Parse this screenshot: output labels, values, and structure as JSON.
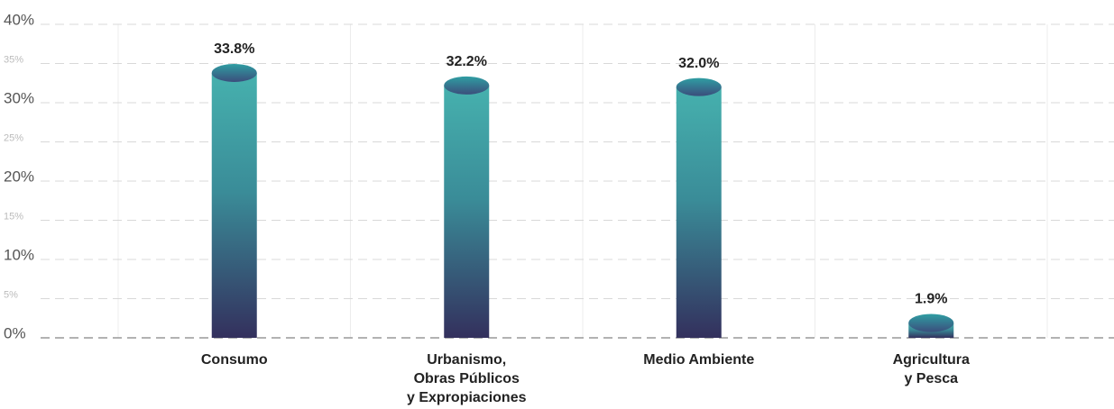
{
  "chart_data": {
    "type": "bar",
    "categories": [
      "Consumo",
      "Urbanismo,\nObras Públicos\ny Expropiaciones",
      "Medio Ambiente",
      "Agricultura\ny Pesca"
    ],
    "values": [
      33.8,
      32.2,
      32.0,
      1.9
    ],
    "value_labels": [
      "33.8%",
      "32.2%",
      "32.0%",
      "1.9%"
    ],
    "color": [
      "#46b1ae",
      "#33305d"
    ],
    "ylim": [
      0,
      40
    ],
    "yticks": [
      {
        "value": 0,
        "label": "0%"
      },
      {
        "value": 5,
        "label": "5%"
      },
      {
        "value": 10,
        "label": "10%"
      },
      {
        "value": 15,
        "label": "15%"
      },
      {
        "value": 20,
        "label": "20%"
      },
      {
        "value": 25,
        "label": "25%"
      },
      {
        "value": 30,
        "label": "30%"
      },
      {
        "value": 35,
        "label": "35%"
      },
      {
        "value": 40,
        "label": "40%"
      }
    ],
    "grid": true
  }
}
